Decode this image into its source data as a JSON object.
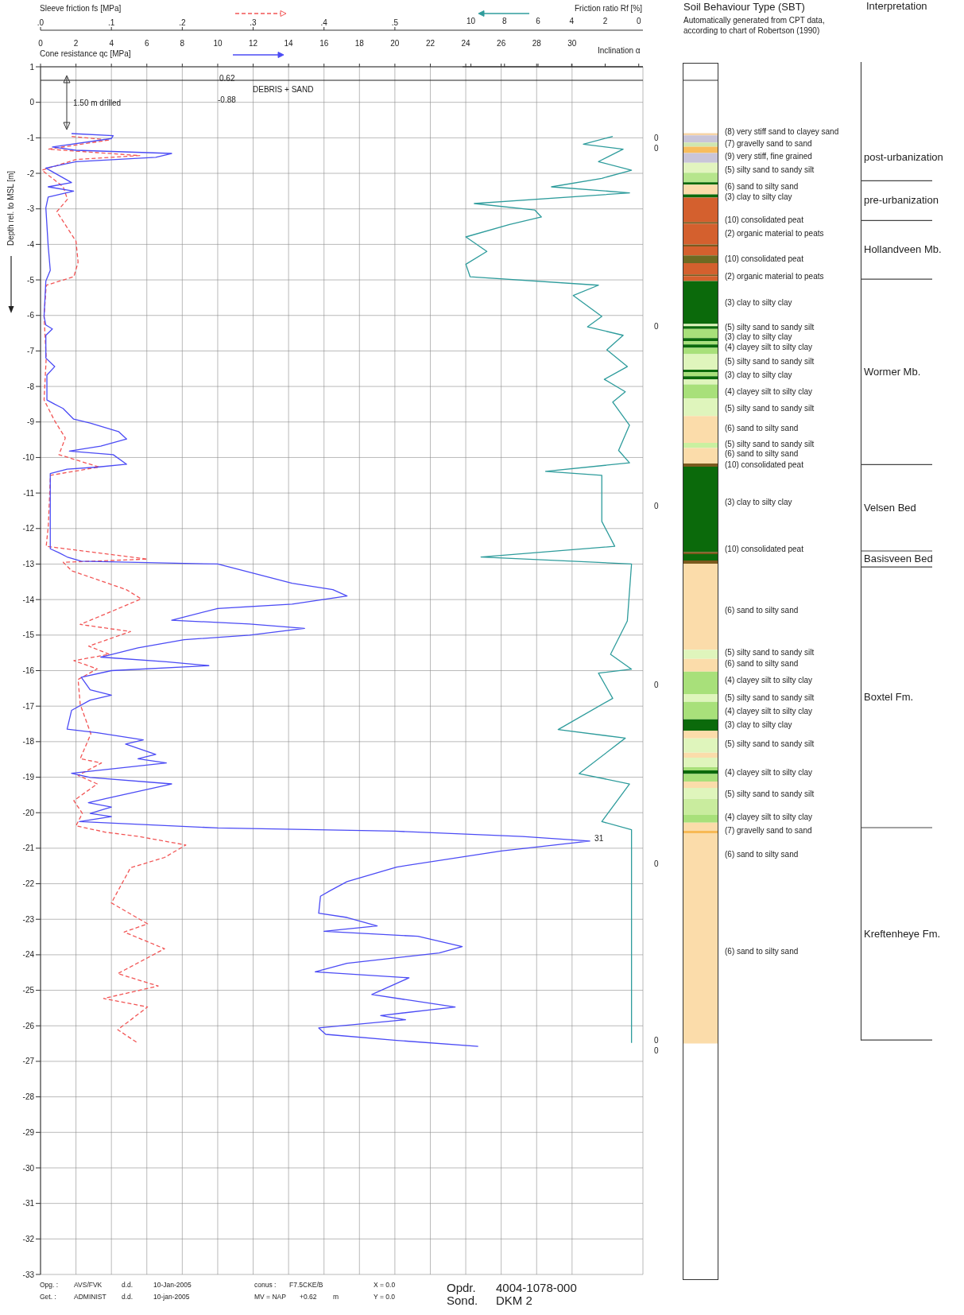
{
  "chart_data": [
    {
      "type": "line",
      "xlabel": "Cone resistance qc [MPa]",
      "x2label": "Sleeve friction fs [MPa]",
      "ylabel": "Depth rel. to MSL [m]",
      "xlim": [
        0,
        34
      ],
      "xticks": [
        0,
        2,
        4,
        6,
        8,
        10,
        12,
        14,
        16,
        18,
        20,
        22,
        24,
        26,
        28,
        30
      ],
      "x2lim": [
        0,
        0.85
      ],
      "x2ticks": [
        {
          "value": 0,
          "label": ".0"
        },
        {
          "value": 0.1,
          "label": ".1"
        },
        {
          "value": 0.2,
          "label": ".2"
        },
        {
          "value": 0.3,
          "label": ".3"
        },
        {
          "value": 0.4,
          "label": ".4"
        },
        {
          "value": 0.5,
          "label": ".5"
        }
      ],
      "ylim": [
        -33,
        1
      ],
      "yticks": [
        1,
        0,
        -1,
        -2,
        -3,
        -4,
        -5,
        -6,
        -7,
        -8,
        -9,
        -10,
        -11,
        -12,
        -13,
        -14,
        -15,
        -16,
        -17,
        -18,
        -19,
        -20,
        -21,
        -22,
        -23,
        -24,
        -25,
        -26,
        -27,
        -28,
        -29,
        -30,
        -31,
        -32,
        -33
      ],
      "grid": true,
      "series": [
        {
          "type": "line",
          "axis": "x2",
          "color": "#f25555",
          "line_style": "dashed",
          "x": [
            0.044,
            0.097,
            0.011,
            0.14,
            0.05,
            0.002,
            0.032,
            0.038,
            0.023,
            0.05,
            0.053,
            0.047,
            0.008,
            0.005,
            0.008,
            0.005,
            0.02,
            0.035,
            0.026,
            0.083,
            0.014,
            0.011,
            0.008,
            0.151,
            0.032,
            0.044,
            0.121,
            0.142,
            0.103,
            0.056,
            0.127,
            0.068,
            0.097,
            0.047,
            0.08,
            0.053,
            0.056,
            0.071,
            0.056,
            0.086,
            0.053,
            0.08,
            0.047,
            0.059,
            0.05,
            0.092,
            0.139,
            0.205,
            0.175,
            0.127,
            0.1,
            0.151,
            0.118,
            0.175,
            0.109,
            0.166,
            0.089,
            0.151,
            0.109,
            0.136
          ],
          "values": [
            -0.96,
            -1.06,
            -1.32,
            -1.5,
            -1.61,
            -1.91,
            -2.38,
            -2.73,
            -3.08,
            -3.91,
            -4.5,
            -4.91,
            -5.15,
            -6.03,
            -7.2,
            -8.38,
            -8.97,
            -9.45,
            -9.92,
            -10.27,
            -10.5,
            -11.92,
            -12.5,
            -12.86,
            -12.95,
            -13.19,
            -13.72,
            -13.98,
            -14.31,
            -14.7,
            -14.9,
            -15.31,
            -15.54,
            -15.72,
            -15.95,
            -16.25,
            -16.95,
            -17.78,
            -18.48,
            -18.6,
            -18.95,
            -19.19,
            -19.66,
            -20.02,
            -20.37,
            -20.55,
            -20.67,
            -20.91,
            -21.26,
            -21.55,
            -22.54,
            -23.13,
            -23.36,
            -23.83,
            -24.53,
            -24.88,
            -25.23,
            -25.47,
            -26.11,
            -26.47
          ]
        },
        {
          "type": "line",
          "color": "#4b4bf5",
          "x": [
            1.75,
            4.1,
            4.0,
            0.67,
            2.0,
            7.4,
            6.5,
            2.0,
            0.3,
            1.75,
            0.43,
            1.87,
            0.43,
            0.3,
            0.43,
            0.55,
            0.3,
            0.2,
            0.3,
            0.67,
            0.3,
            0.3,
            0.8,
            0.36,
            0.36,
            0.8,
            1.27,
            1.87,
            2.8,
            4.4,
            4.86,
            3.4,
            1.63,
            4.1,
            4.86,
            3.2,
            1.5,
            0.55,
            0.55,
            0.55,
            1.03,
            1.5,
            2.3,
            10.0,
            14.2,
            16.5,
            17.3,
            14.2,
            10.0,
            7.4,
            11.8,
            14.9,
            11.8,
            8.1,
            5.5,
            3.4,
            7.1,
            9.5,
            4.0,
            2.3,
            2.8,
            4.0,
            2.8,
            1.75,
            1.5,
            3.2,
            5.8,
            4.8,
            6.5,
            5.5,
            7.1,
            1.75,
            2.8,
            7.4,
            3.7,
            2.7,
            4.0,
            2.8,
            4.0,
            2.2,
            10.0,
            20.0,
            27.2,
            31,
            26.0,
            20.1,
            17.3,
            16.4,
            15.8,
            15.7,
            17.3,
            19.0,
            16.0,
            21.3,
            23.8,
            22.5,
            17.3,
            15.5,
            20.8,
            18.7,
            23.4,
            19.2,
            20.6,
            15.7,
            16.1,
            20.1,
            24.7
          ],
          "values": [
            -0.88,
            -0.94,
            -1.02,
            -1.26,
            -1.35,
            -1.44,
            -1.55,
            -1.67,
            -1.85,
            -2.26,
            -2.38,
            -2.5,
            -2.67,
            -2.97,
            -4.03,
            -4.73,
            -5.03,
            -6.03,
            -6.27,
            -6.38,
            -6.56,
            -7.2,
            -7.44,
            -7.68,
            -8.38,
            -8.5,
            -8.62,
            -8.92,
            -9.03,
            -9.27,
            -9.48,
            -9.68,
            -9.82,
            -9.92,
            -10.19,
            -10.27,
            -10.33,
            -10.45,
            -11.92,
            -12.57,
            -12.68,
            -12.8,
            -12.92,
            -13.0,
            -13.54,
            -13.72,
            -13.9,
            -14.13,
            -14.25,
            -14.58,
            -14.69,
            -14.81,
            -15.0,
            -15.13,
            -15.36,
            -15.62,
            -15.75,
            -15.86,
            -16.0,
            -16.19,
            -16.54,
            -16.69,
            -16.83,
            -17.12,
            -17.65,
            -17.75,
            -17.95,
            -18.07,
            -18.36,
            -18.48,
            -18.6,
            -18.89,
            -19.01,
            -19.19,
            -19.6,
            -19.72,
            -19.84,
            -20.02,
            -20.11,
            -20.25,
            -20.43,
            -20.52,
            -20.67,
            -20.8,
            -21.08,
            -21.53,
            -21.94,
            -22.18,
            -22.35,
            -22.83,
            -22.95,
            -23.19,
            -23.34,
            -23.48,
            -23.77,
            -23.95,
            -24.24,
            -24.48,
            -24.65,
            -25.12,
            -25.47,
            -25.71,
            -25.83,
            -26.06,
            -26.24,
            -26.41,
            -26.58
          ]
        }
      ],
      "ref_lines": [
        {
          "axis": "y",
          "value": 0.62,
          "color": "#222222"
        }
      ],
      "annotations": [
        "0.62",
        "-0.88",
        "DEBRIS + SAND",
        "1.50 m drilled",
        "Inclination α",
        {
          "text": "31",
          "x": 31,
          "y": -20.8
        },
        "0",
        "0",
        "0",
        "0",
        "0",
        "0",
        "0",
        "0",
        "Opg. :",
        "AVS/FVK",
        "d.d.",
        "10-Jan-2005",
        "conus :",
        "F7.5CKE/B",
        "X = 0.0",
        "Get. :",
        "ADMINIST",
        "d.d.",
        "10-jan-2005",
        "MV = NAP",
        "+0.62",
        "m",
        "Y = 0.0",
        "Opdr.",
        "4004-1078-000",
        "Sond.",
        "DKM 2"
      ]
    },
    {
      "type": "line",
      "xlabel": "Friction ratio Rf [%]",
      "xlim": [
        10.5,
        -0.25
      ],
      "xticks": [
        10,
        8,
        6,
        4,
        2,
        0
      ],
      "ylim": [
        -33,
        1
      ],
      "tick_labels": "x",
      "series": [
        {
          "type": "line",
          "color": "#2e9c9c",
          "x": [
            1.55,
            3.3,
            0.93,
            2.4,
            0.43,
            2.2,
            5.2,
            0.55,
            9.8,
            6.2,
            5.8,
            7.7,
            10.3,
            9.05,
            10.3,
            10.05,
            2.4,
            3.9,
            2.2,
            3.05,
            0.93,
            1.9,
            0.68,
            2.05,
            0.8,
            1.55,
            0.55,
            1.2,
            0.55,
            5.55,
            2.2,
            2.2,
            1.43,
            9.4,
            1.2,
            0.43,
            0.68,
            1.68,
            0.43,
            2.4,
            1.55,
            4.8,
            0.8,
            3.55,
            0.55,
            2.2,
            0.43,
            0.43
          ],
          "values": [
            -0.96,
            -1.18,
            -1.32,
            -1.67,
            -1.91,
            -2.14,
            -2.38,
            -2.55,
            -2.85,
            -3.03,
            -3.23,
            -3.44,
            -3.79,
            -4.2,
            -4.56,
            -4.91,
            -5.15,
            -5.44,
            -6.03,
            -6.32,
            -6.56,
            -6.97,
            -7.44,
            -7.8,
            -8.15,
            -8.44,
            -9.09,
            -9.8,
            -10.15,
            -10.39,
            -10.5,
            -11.8,
            -12.5,
            -12.8,
            -12.98,
            -13.0,
            -14.6,
            -15.54,
            -15.96,
            -16.07,
            -16.78,
            -17.66,
            -17.9,
            -18.9,
            -19.19,
            -20.25,
            -20.48,
            -26.48
          ]
        }
      ]
    },
    {
      "type": "bar",
      "title": "Soil Behaviour Type (SBT)",
      "subtitle": "Automatically generated from CPT data, according to chart of Robertson (1990)",
      "categories": [
        null
      ],
      "ylim": [
        -33,
        1
      ],
      "tick_labels": false,
      "series": [
        {
          "color": "#f6d4a6",
          "values": [
            0.06
          ],
          "base": [
            -0.93
          ]
        },
        {
          "color": "#c9c5d9",
          "values": [
            0.2
          ],
          "base": [
            -1.13
          ]
        },
        {
          "color": "#cfe6b0",
          "values": [
            0.12
          ],
          "base": [
            -1.25
          ]
        },
        {
          "color": "#f7bd5e",
          "values": [
            0.18
          ],
          "base": [
            -1.43
          ]
        },
        {
          "color": "#c9c5d9",
          "values": [
            0.27
          ],
          "base": [
            -1.7
          ]
        },
        {
          "color": "#e2f4bf",
          "values": [
            0.28
          ],
          "base": [
            -1.98
          ]
        },
        {
          "color": "#b6e58c",
          "values": [
            0.27
          ],
          "base": [
            -2.25
          ]
        },
        {
          "color": "#0b6a0b",
          "values": [
            0.07
          ],
          "base": [
            -2.32
          ]
        },
        {
          "color": "#fbdcaa",
          "values": [
            0.27
          ],
          "base": [
            -2.59
          ]
        },
        {
          "color": "#0b6a0b",
          "values": [
            0.09
          ],
          "base": [
            -2.68
          ]
        },
        {
          "color": "#d4602e",
          "values": [
            0.69
          ],
          "base": [
            -3.37
          ]
        },
        {
          "color": "#7b5a1e",
          "values": [
            0.05
          ],
          "base": [
            -3.42
          ]
        },
        {
          "color": "#d4602e",
          "values": [
            0.58
          ],
          "base": [
            -4
          ]
        },
        {
          "color": "#7b5a1e",
          "values": [
            0.06
          ],
          "base": [
            -4.06
          ]
        },
        {
          "color": "#d4602e",
          "values": [
            0.25
          ],
          "base": [
            -4.31
          ]
        },
        {
          "color": "#6e6a22",
          "values": [
            0.22
          ],
          "base": [
            -4.53
          ]
        },
        {
          "color": "#d4602e",
          "values": [
            0.32
          ],
          "base": [
            -4.85
          ]
        },
        {
          "color": "#7b5a1e",
          "values": [
            0.04
          ],
          "base": [
            -4.89
          ]
        },
        {
          "color": "#d4602e",
          "values": [
            0.14
          ],
          "base": [
            -5.03
          ]
        },
        {
          "color": "#0b6a0b",
          "values": [
            1.21
          ],
          "base": [
            -6.24
          ]
        },
        {
          "color": "#dff5bc",
          "values": [
            0.06
          ],
          "base": [
            -6.3
          ]
        },
        {
          "color": "#0b6a0b",
          "values": [
            0.08
          ],
          "base": [
            -6.38
          ]
        },
        {
          "color": "#a8e07a",
          "values": [
            0.26
          ],
          "base": [
            -6.64
          ]
        },
        {
          "color": "#0b6a0b",
          "values": [
            0.09
          ],
          "base": [
            -6.73
          ]
        },
        {
          "color": "#a8e07a",
          "values": [
            0.09
          ],
          "base": [
            -6.82
          ]
        },
        {
          "color": "#0b6a0b",
          "values": [
            0.09
          ],
          "base": [
            -6.91
          ]
        },
        {
          "color": "#a8e07a",
          "values": [
            0.18
          ],
          "base": [
            -7.09
          ]
        },
        {
          "color": "#dff5bc",
          "values": [
            0.44
          ],
          "base": [
            -7.53
          ]
        },
        {
          "color": "#0b6a0b",
          "values": [
            0.07
          ],
          "base": [
            -7.6
          ]
        },
        {
          "color": "#a8e07a",
          "values": [
            0.11
          ],
          "base": [
            -7.71
          ]
        },
        {
          "color": "#0b6a0b",
          "values": [
            0.09
          ],
          "base": [
            -7.8
          ]
        },
        {
          "color": "#dff5bc",
          "values": [
            0.14
          ],
          "base": [
            -7.94
          ]
        },
        {
          "color": "#a8e07a",
          "values": [
            0.4
          ],
          "base": [
            -8.34
          ]
        },
        {
          "color": "#dff5bc",
          "values": [
            0.49
          ],
          "base": [
            -8.83
          ]
        },
        {
          "color": "#fbdcaa",
          "values": [
            0.76
          ],
          "base": [
            -9.59
          ]
        },
        {
          "color": "#c9f0a0",
          "values": [
            0.14
          ],
          "base": [
            -9.73
          ]
        },
        {
          "color": "#fbdcaa",
          "values": [
            0.44
          ],
          "base": [
            -10.17
          ]
        },
        {
          "color": "#7b5a1e",
          "values": [
            0.09
          ],
          "base": [
            -10.26
          ]
        },
        {
          "color": "#0b6a0b",
          "values": [
            2.4
          ],
          "base": [
            -12.66
          ]
        },
        {
          "color": "#7b5a1e",
          "values": [
            0.06
          ],
          "base": [
            -12.72
          ]
        },
        {
          "color": "#0b6a0b",
          "values": [
            0.18
          ],
          "base": [
            -12.9
          ]
        },
        {
          "color": "#7b5a1e",
          "values": [
            0.09
          ],
          "base": [
            -12.99
          ]
        },
        {
          "color": "#fbdcaa",
          "values": [
            2.42
          ],
          "base": [
            -15.41
          ]
        },
        {
          "color": "#dff5bc",
          "values": [
            0.26
          ],
          "base": [
            -15.67
          ]
        },
        {
          "color": "#fbdcaa",
          "values": [
            0.36
          ],
          "base": [
            -16.03
          ]
        },
        {
          "color": "#a8e07a",
          "values": [
            0.63
          ],
          "base": [
            -16.66
          ]
        },
        {
          "color": "#dff5bc",
          "values": [
            0.22
          ],
          "base": [
            -16.88
          ]
        },
        {
          "color": "#a8e07a",
          "values": [
            0.49
          ],
          "base": [
            -17.37
          ]
        },
        {
          "color": "#0b6a0b",
          "values": [
            0.32
          ],
          "base": [
            -17.69
          ]
        },
        {
          "color": "#fbdcaa",
          "values": [
            0.22
          ],
          "base": [
            -17.91
          ]
        },
        {
          "color": "#dff5bc",
          "values": [
            0.4
          ],
          "base": [
            -18.31
          ]
        },
        {
          "color": "#fbdcaa",
          "values": [
            0.14
          ],
          "base": [
            -18.45
          ]
        },
        {
          "color": "#dff5bc",
          "values": [
            0.27
          ],
          "base": [
            -18.72
          ]
        },
        {
          "color": "#a8e07a",
          "values": [
            0.09
          ],
          "base": [
            -18.81
          ]
        },
        {
          "color": "#0b6a0b",
          "values": [
            0.1
          ],
          "base": [
            -18.91
          ]
        },
        {
          "color": "#a8e07a",
          "values": [
            0.21
          ],
          "base": [
            -19.12
          ]
        },
        {
          "color": "#fbdcaa",
          "values": [
            0.18
          ],
          "base": [
            -19.3
          ]
        },
        {
          "color": "#dff5bc",
          "values": [
            0.31
          ],
          "base": [
            -19.61
          ]
        },
        {
          "color": "#c9ec9e",
          "values": [
            0.45
          ],
          "base": [
            -20.06
          ]
        },
        {
          "color": "#a8e07a",
          "values": [
            0.22
          ],
          "base": [
            -20.28
          ]
        },
        {
          "color": "#fbdcaa",
          "values": [
            0.23
          ],
          "base": [
            -20.51
          ]
        },
        {
          "color": "#f7b955",
          "values": [
            0.07
          ],
          "base": [
            -20.58
          ]
        },
        {
          "color": "#fbdcaa",
          "values": [
            5.92
          ],
          "base": [
            -26.5
          ]
        }
      ],
      "annotations": [
        "Interpretation",
        "(8) very stiff sand to clayey sand",
        "(7) gravelly sand to sand",
        "(9) very stiff, fine grained",
        "(5) silty sand to sandy silt",
        "(6) sand to silty sand",
        "(3) clay to silty clay",
        "(10) consolidated peat",
        "(2) organic material to peats",
        "(10) consolidated peat",
        "(2) organic material to peats",
        "(3) clay to silty clay",
        "(5) silty sand to sandy silt",
        "(3) clay to silty clay",
        "(4) clayey silt to silty clay",
        "(5) silty sand to sandy silt",
        "(3) clay to silty clay",
        "(4) clayey silt to silty clay",
        "(5) silty sand to sandy silt",
        "(6) sand to silty sand",
        "(5) silty sand to sandy silt",
        "(6) sand to silty sand",
        "(10) consolidated peat",
        "(3) clay to silty clay",
        "(10) consolidated peat",
        "(6) sand to silty sand",
        "(5) silty sand to sandy silt",
        "(6) sand to silty sand",
        "(4) clayey silt to silty clay",
        "(5) silty sand to sandy silt",
        "(4) clayey silt to silty clay",
        "(3) clay to silty clay",
        "(5) silty sand to sandy silt",
        "(4) clayey silt to silty clay",
        "(5) silty sand to sandy silt",
        "(4) clayey silt to silty clay",
        "(7) gravelly sand to sand",
        "(6) sand to silty sand",
        "(6) sand to silty sand",
        "post-urbanization",
        "pre-urbanization",
        "Hollandveen Mb.",
        "Wormer Mb.",
        "Velsen Bed",
        "Basisveen Bed",
        "Boxtel Fm.",
        "Kreftenheye Fm."
      ]
    }
  ]
}
